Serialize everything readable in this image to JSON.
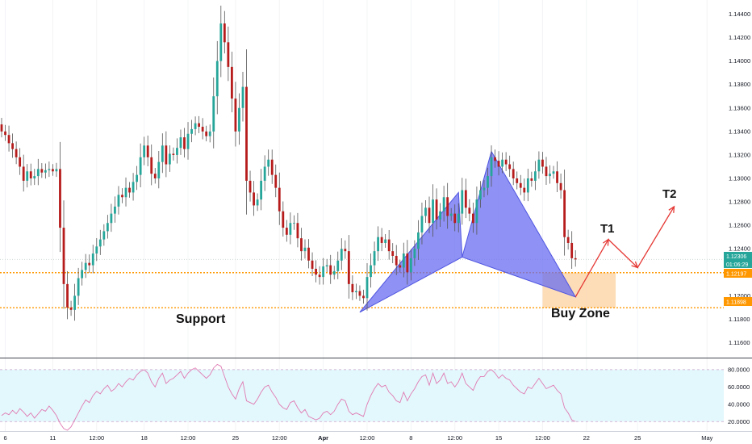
{
  "colors": {
    "up": "#26a69a",
    "down": "#b71c1c",
    "wick": "#555555",
    "pattern": "#6a6ef0",
    "zone": "#fcd9b0",
    "level": "#ff9800",
    "arrow": "#e53935",
    "rsi_line": "#e07ab3",
    "rsi_band": "#e3f8fc",
    "rsi_dash": "#c9a0c9",
    "last_price": "#26a69a"
  },
  "price_axis": {
    "min": 1.1148,
    "max": 1.1452,
    "ticks": [
      "1.14400",
      "1.14200",
      "1.14000",
      "1.13800",
      "1.13600",
      "1.13400",
      "1.13200",
      "1.13000",
      "1.12800",
      "1.12600",
      "1.12400",
      "1.12000",
      "1.11800",
      "1.11600"
    ]
  },
  "rsi_axis": {
    "min": 10,
    "max": 92,
    "ticks": [
      "80.0000",
      "60.0000",
      "40.0000",
      "20.0000"
    ]
  },
  "time_axis": {
    "labels": [
      {
        "text": "6",
        "i": 1,
        "bold": false
      },
      {
        "text": "11",
        "i": 14,
        "bold": false
      },
      {
        "text": "12:00",
        "i": 26,
        "bold": false
      },
      {
        "text": "18",
        "i": 39,
        "bold": false
      },
      {
        "text": "12:00",
        "i": 51,
        "bold": false
      },
      {
        "text": "25",
        "i": 64,
        "bold": false
      },
      {
        "text": "12:00",
        "i": 76,
        "bold": false
      },
      {
        "text": "Apr",
        "i": 88,
        "bold": true
      },
      {
        "text": "12:00",
        "i": 100,
        "bold": false
      },
      {
        "text": "8",
        "i": 112,
        "bold": false
      },
      {
        "text": "12:00",
        "i": 124,
        "bold": false
      },
      {
        "text": "15",
        "i": 136,
        "bold": false
      },
      {
        "text": "12:00",
        "i": 148,
        "bold": false
      },
      {
        "text": "22",
        "i": 160,
        "bold": false
      },
      {
        "text": "25",
        "i": 174,
        "bold": false
      },
      {
        "text": "May",
        "i": 193,
        "bold": false
      }
    ]
  },
  "price_badges": {
    "last_price": "1.12306",
    "countdown": "01:06:29",
    "upper_level": "1.12197",
    "lower_level": "1.11898"
  },
  "annotations": {
    "support": "Support",
    "buy_zone": "Buy Zone",
    "t1": "T1",
    "t2": "T2"
  },
  "chart_data": {
    "type": "candlestick",
    "instrument_hint": "EURUSD-style forex pair, ~2-hour candles",
    "levels": {
      "upper": 1.12197,
      "lower": 1.11898
    },
    "buy_zone": {
      "price_top": 1.12197,
      "price_bottom": 1.11898
    },
    "harmonic_pattern": {
      "points": [
        {
          "i": 98,
          "price": 1.1186
        },
        {
          "i": 125,
          "price": 1.1288
        },
        {
          "i": 126,
          "price": 1.1233
        },
        {
          "i": 134,
          "price": 1.1323
        },
        {
          "i": 157,
          "price": 1.1199
        }
      ]
    },
    "projection": {
      "points": [
        {
          "i": 157,
          "price": 1.1199
        },
        {
          "i": 166,
          "price": 1.1248
        },
        {
          "i": 174,
          "price": 1.1224
        },
        {
          "i": 184,
          "price": 1.1276
        }
      ]
    },
    "closes": [
      1.134,
      1.1337,
      1.133,
      1.1325,
      1.1318,
      1.131,
      1.1298,
      1.1306,
      1.13,
      1.1302,
      1.1308,
      1.1305,
      1.1307,
      1.1308,
      1.1306,
      1.1308,
      1.1258,
      1.121,
      1.119,
      1.1188,
      1.12,
      1.1215,
      1.1222,
      1.1228,
      1.1226,
      1.1236,
      1.1242,
      1.1248,
      1.1255,
      1.1262,
      1.127,
      1.1276,
      1.1286,
      1.1284,
      1.1292,
      1.1288,
      1.1297,
      1.1303,
      1.1318,
      1.1328,
      1.1318,
      1.1304,
      1.13,
      1.1314,
      1.1328,
      1.1312,
      1.1321,
      1.132,
      1.1326,
      1.1335,
      1.1325,
      1.1338,
      1.1342,
      1.1347,
      1.1344,
      1.134,
      1.1336,
      1.134,
      1.137,
      1.14,
      1.1432,
      1.1416,
      1.1395,
      1.1368,
      1.134,
      1.136,
      1.1378,
      1.1298,
      1.1288,
      1.1277,
      1.1282,
      1.1298,
      1.131,
      1.1316,
      1.1303,
      1.1292,
      1.1272,
      1.1258,
      1.1252,
      1.1262,
      1.1262,
      1.1249,
      1.1238,
      1.1241,
      1.123,
      1.1223,
      1.1218,
      1.1216,
      1.1225,
      1.1226,
      1.1218,
      1.1221,
      1.123,
      1.124,
      1.1238,
      1.121,
      1.1203,
      1.1204,
      1.12,
      1.1198,
      1.1216,
      1.1226,
      1.1238,
      1.125,
      1.1245,
      1.1248,
      1.1238,
      1.1234,
      1.1226,
      1.1224,
      1.1236,
      1.122,
      1.1232,
      1.124,
      1.1254,
      1.1268,
      1.1275,
      1.1262,
      1.1282,
      1.1265,
      1.1272,
      1.1284,
      1.1268,
      1.127,
      1.1262,
      1.127,
      1.129,
      1.1275,
      1.127,
      1.1262,
      1.1282,
      1.129,
      1.1292,
      1.1302,
      1.1318,
      1.1315,
      1.131,
      1.1316,
      1.1312,
      1.1308,
      1.13,
      1.1296,
      1.1292,
      1.1288,
      1.13,
      1.1298,
      1.1306,
      1.1316,
      1.131,
      1.1302,
      1.1304,
      1.1306,
      1.1296,
      1.129,
      1.125,
      1.1245,
      1.1232,
      1.1231
    ],
    "rsi": [
      27,
      30,
      28,
      33,
      29,
      35,
      31,
      26,
      30,
      24,
      29,
      34,
      32,
      38,
      33,
      27,
      18,
      12,
      10,
      14,
      22,
      30,
      38,
      45,
      42,
      50,
      55,
      52,
      58,
      62,
      55,
      58,
      64,
      60,
      66,
      70,
      68,
      74,
      78,
      80,
      76,
      66,
      60,
      70,
      76,
      64,
      68,
      70,
      74,
      78,
      70,
      76,
      80,
      82,
      78,
      74,
      70,
      74,
      82,
      86,
      84,
      72,
      60,
      52,
      46,
      58,
      66,
      44,
      42,
      40,
      46,
      54,
      60,
      62,
      54,
      48,
      40,
      36,
      34,
      42,
      44,
      36,
      30,
      34,
      26,
      24,
      22,
      24,
      30,
      32,
      28,
      32,
      40,
      46,
      44,
      32,
      28,
      30,
      28,
      26,
      40,
      50,
      58,
      64,
      60,
      62,
      54,
      50,
      44,
      42,
      54,
      44,
      52,
      58,
      66,
      72,
      74,
      62,
      76,
      64,
      68,
      76,
      64,
      66,
      60,
      66,
      76,
      64,
      60,
      56,
      66,
      72,
      72,
      78,
      80,
      76,
      70,
      74,
      70,
      68,
      62,
      58,
      54,
      52,
      60,
      58,
      64,
      70,
      64,
      58,
      60,
      62,
      56,
      52,
      36,
      30,
      22,
      20
    ]
  }
}
